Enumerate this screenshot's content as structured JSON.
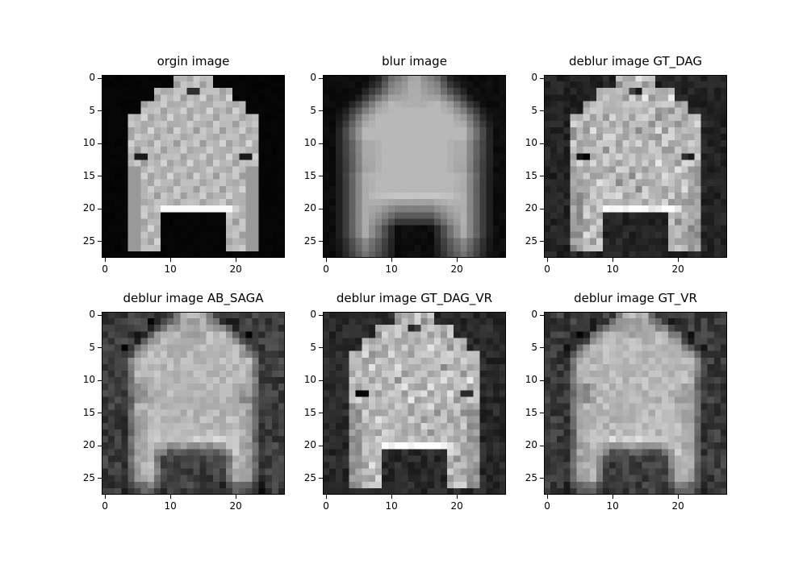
{
  "chart_data": {
    "type": "heatmap",
    "colormap": "gray",
    "pixel_grid": [
      28,
      28
    ],
    "xlim": [
      -0.5,
      27.5
    ],
    "ylim": [
      27.5,
      -0.5
    ],
    "x_ticks": [
      0,
      10,
      20
    ],
    "y_ticks": [
      0,
      5,
      10,
      15,
      20,
      25
    ],
    "grid": false,
    "panels": [
      {
        "title": "orgin image",
        "noise": 0.0,
        "blur": 0,
        "bg": 0.02
      },
      {
        "title": "blur image",
        "noise": 0.0,
        "blur": 2,
        "bg": 0.05
      },
      {
        "title": "deblur image GT_DAG",
        "noise": 0.1,
        "blur": 0,
        "bg": 0.14
      },
      {
        "title": "deblur image AB_SAGA",
        "noise": 0.07,
        "blur": 1,
        "bg": 0.24
      },
      {
        "title": "deblur image GT_DAG_VR",
        "noise": 0.09,
        "blur": 0,
        "bg": 0.16
      },
      {
        "title": "deblur image GT_VR",
        "noise": 0.07,
        "blur": 1,
        "bg": 0.23
      }
    ]
  }
}
